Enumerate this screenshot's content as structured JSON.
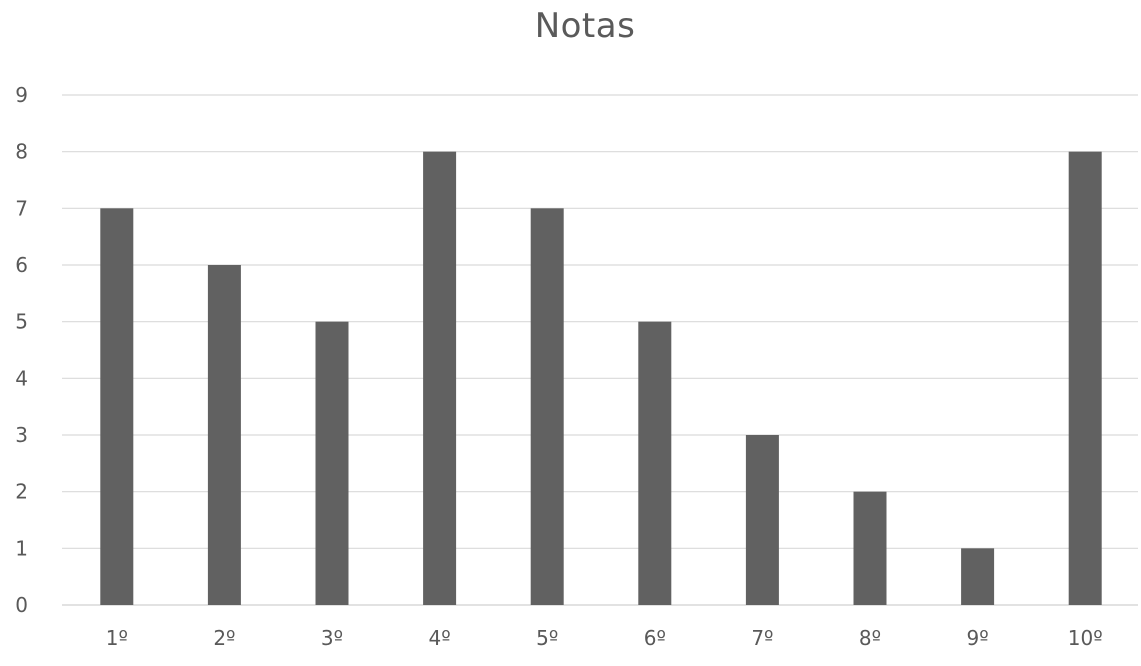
{
  "chart_data": {
    "type": "bar",
    "title": "Notas",
    "xlabel": "",
    "ylabel": "",
    "categories": [
      "1º",
      "2º",
      "3º",
      "4º",
      "5º",
      "6º",
      "7º",
      "8º",
      "9º",
      "10º"
    ],
    "values": [
      7,
      6,
      5,
      8,
      7,
      5,
      3,
      2,
      1,
      8
    ],
    "ylim": [
      0,
      9
    ],
    "yticks": [
      "0",
      "1",
      "2",
      "3",
      "4",
      "5",
      "6",
      "7",
      "8",
      "9"
    ],
    "grid": true,
    "legend": "none",
    "colors": {
      "bar": "#616161",
      "grid": "#d9d9d9",
      "text": "#595959"
    }
  }
}
